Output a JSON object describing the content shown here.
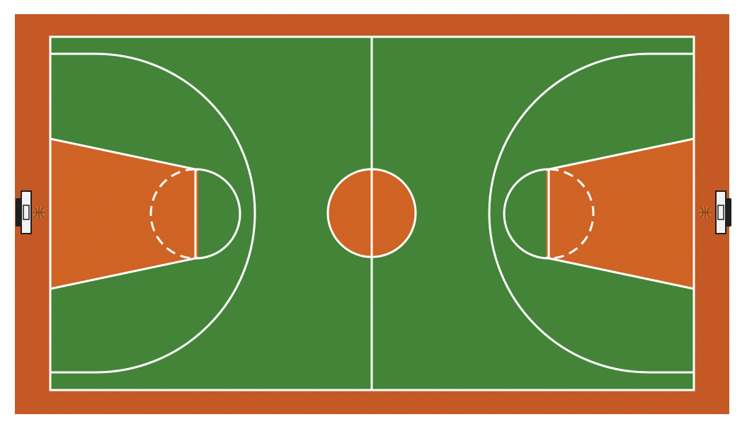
{
  "colors": {
    "background": "#ffffff",
    "apron": "#c4551f",
    "court": "#3f8233",
    "paint": "#d0601f",
    "center_circle": "#d0601f",
    "lines": "#ffffff",
    "backboard": "#1f1f1f",
    "ball": "#c86a2e"
  },
  "icons": {
    "left_hoop": "basketball-hoop-icon",
    "right_hoop": "basketball-hoop-icon"
  }
}
